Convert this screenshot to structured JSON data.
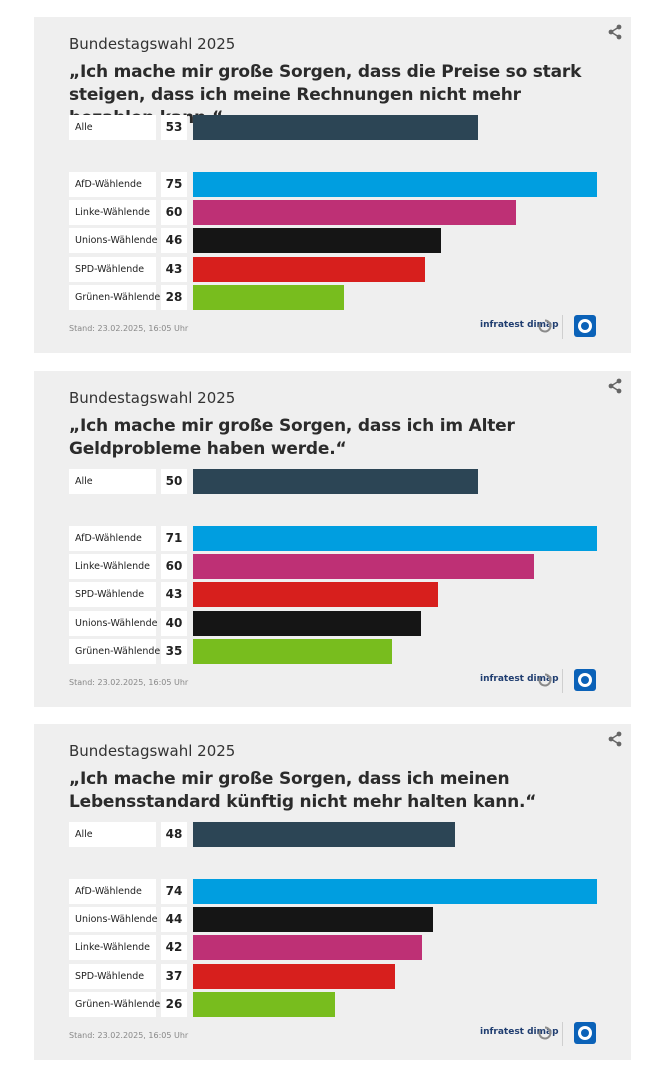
{
  "colors": {
    "Alle": "#2c4555",
    "AfD-Wählende": "#009ee0",
    "Linke-Wählende": "#be3075",
    "Unions-Wählende": "#151515",
    "SPD-Wählende": "#d71f1d",
    "Grünen-Wählende": "#78bd1e"
  },
  "chart_data": [
    {
      "type": "bar",
      "subtitle": "Bundestagswahl 2025",
      "title": "„Ich mache mir große Sorgen, dass die Preise so stark steigen, dass ich meine Rechnungen nicht mehr bezahlen kann.“",
      "unit": "%",
      "categories": [
        "Alle",
        "AfD-Wählende",
        "Linke-Wählende",
        "Unions-Wählende",
        "SPD-Wählende",
        "Grünen-Wählende"
      ],
      "values": [
        53,
        75,
        60,
        46,
        43,
        28
      ],
      "stand": "Stand: 23.02.2025, 16:05 Uhr",
      "source": "infratest dimap"
    },
    {
      "type": "bar",
      "subtitle": "Bundestagswahl 2025",
      "title": "„Ich mache mir große Sorgen, dass ich im Alter Geldprobleme haben werde.“",
      "unit": "%",
      "categories": [
        "Alle",
        "AfD-Wählende",
        "Linke-Wählende",
        "SPD-Wählende",
        "Unions-Wählende",
        "Grünen-Wählende"
      ],
      "values": [
        50,
        71,
        60,
        43,
        40,
        35
      ],
      "stand": "Stand: 23.02.2025, 16:05 Uhr",
      "source": "infratest dimap"
    },
    {
      "type": "bar",
      "subtitle": "Bundestagswahl 2025",
      "title": "„Ich mache mir große Sorgen, dass ich meinen Lebensstandard künftig nicht mehr halten kann.“",
      "unit": "%",
      "categories": [
        "Alle",
        "AfD-Wählende",
        "Unions-Wählende",
        "Linke-Wählende",
        "SPD-Wählende",
        "Grünen-Wählende"
      ],
      "values": [
        48,
        74,
        44,
        42,
        37,
        26
      ],
      "stand": "Stand: 23.02.2025, 16:05 Uhr",
      "source": "infratest dimap"
    }
  ]
}
